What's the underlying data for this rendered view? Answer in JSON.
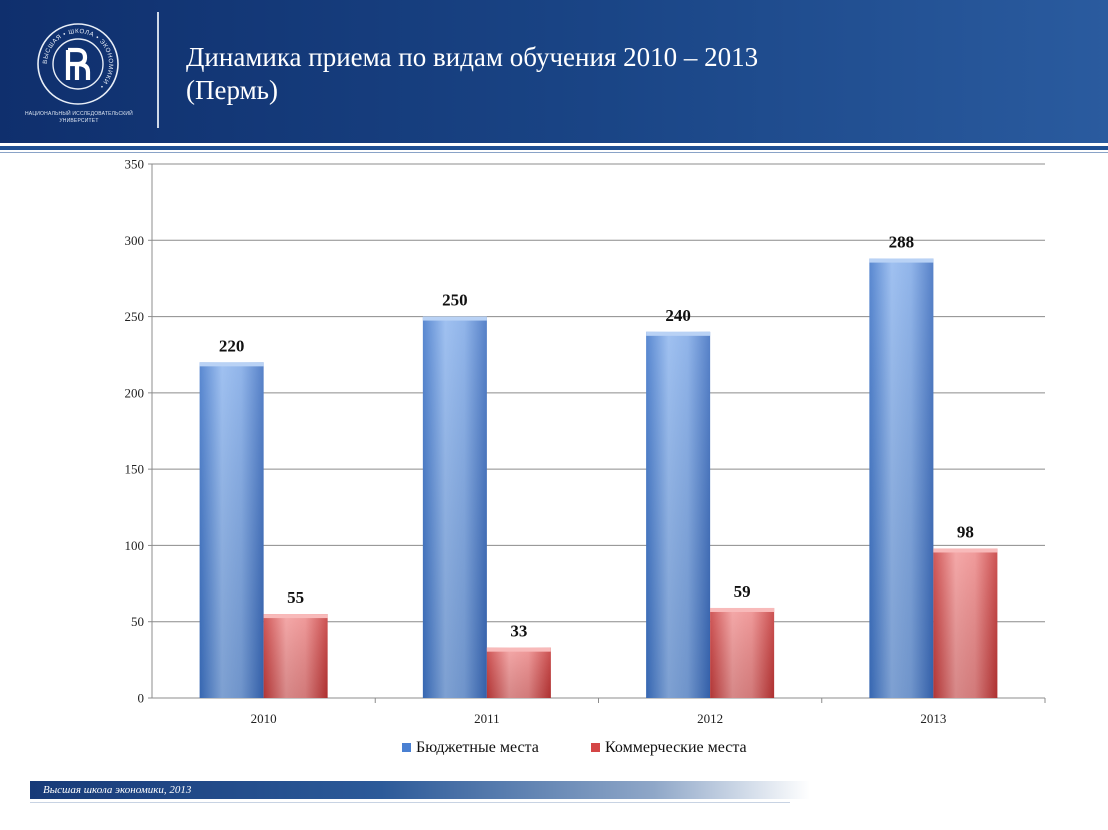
{
  "header": {
    "title_line1": "Динамика приема по видам обучения 2010 – 2013",
    "title_line2": "(Пермь)",
    "logo_caption_line1": "НАЦИОНАЛЬНЫЙ ИССЛЕДОВАТЕЛЬСКИЙ",
    "logo_caption_line2": "УНИВЕРСИТЕТ",
    "logo_ring_text": "ВЫСШАЯ • ШКОЛА • ЭКОНОМИКИ •",
    "logo_icon": "hse-logo-icon"
  },
  "footer": {
    "text": "Высшая школа экономики, 2013"
  },
  "colors": {
    "header": "#1a4586",
    "series_budget": "#5b8fd9",
    "series_commercial": "#e06060"
  },
  "chart_data": {
    "type": "bar",
    "categories": [
      "2010",
      "2011",
      "2012",
      "2013"
    ],
    "series": [
      {
        "name": "Бюджетные места",
        "values": [
          220,
          250,
          240,
          288
        ]
      },
      {
        "name": "Коммерческие места",
        "values": [
          55,
          33,
          59,
          98
        ]
      }
    ],
    "ylim": [
      0,
      350
    ],
    "yticks": [
      0,
      50,
      100,
      150,
      200,
      250,
      300,
      350
    ],
    "grid": true,
    "legend_position": "bottom",
    "xlabel": "",
    "ylabel": ""
  }
}
